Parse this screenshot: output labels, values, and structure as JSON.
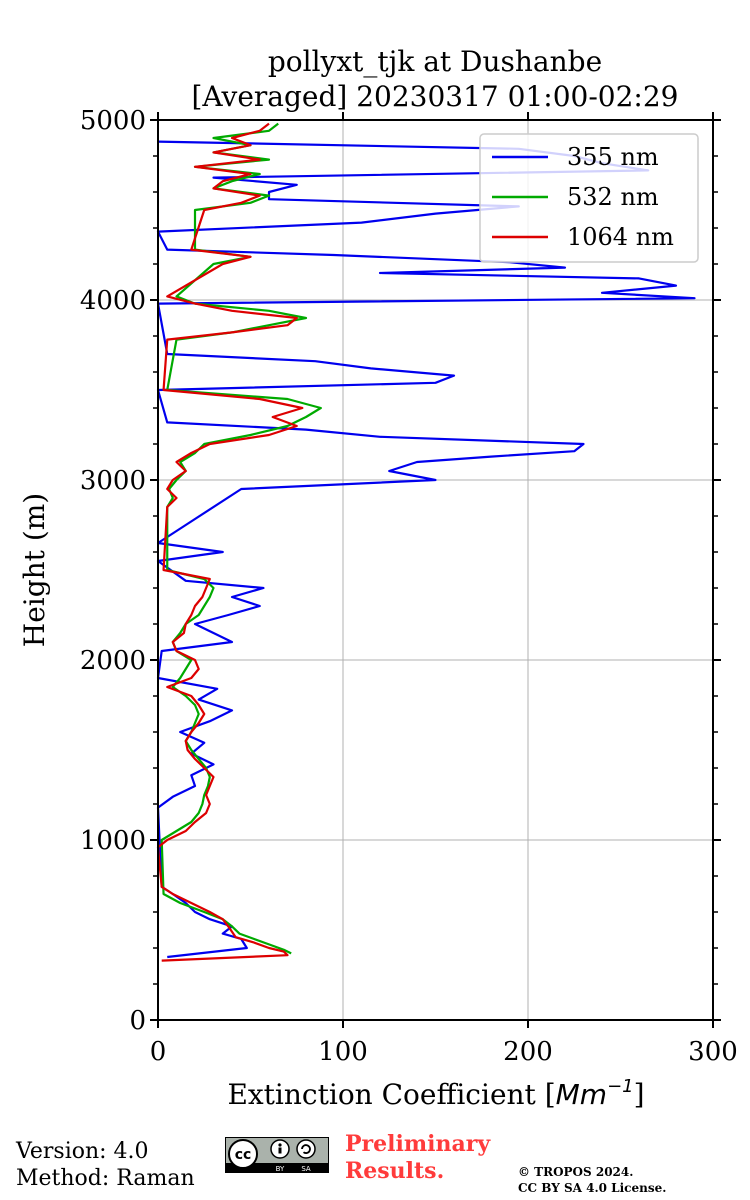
{
  "chart_data": {
    "type": "line",
    "title_line1": "pollyxt_tjk at Dushanbe",
    "title_line2": "[Averaged] 20230317 01:00-02:29",
    "xlabel": "Extinction Coefficient [Mm⁻¹]",
    "xlabel_main": "Extinction Coefficient [",
    "xlabel_unit": "Mm",
    "xlabel_exp": "−1",
    "xlabel_close": "]",
    "ylabel": "Height (m)",
    "xlim": [
      0,
      300
    ],
    "ylim": [
      0,
      5000
    ],
    "xticks": [
      "0",
      "100",
      "200",
      "300"
    ],
    "yticks": [
      "0",
      "1000",
      "2000",
      "3000",
      "4000",
      "5000"
    ],
    "grid": true,
    "legend_position": "top-right",
    "series": [
      {
        "name": "355 nm",
        "color": "#0000ee",
        "heights": [
          350,
          400,
          450,
          480,
          520,
          560,
          600,
          650,
          700,
          740,
          1180,
          1240,
          1300,
          1360,
          1420,
          1480,
          1540,
          1600,
          1660,
          1720,
          1780,
          1840,
          1900,
          2050,
          2100,
          2150,
          2200,
          2250,
          2300,
          2350,
          2400,
          2440,
          2550,
          2600,
          2650,
          2750,
          2950,
          3000,
          3050,
          3100,
          3130,
          3160,
          3200,
          3240,
          3280,
          3320,
          3500,
          3540,
          3580,
          3620,
          3660,
          3700,
          3980,
          4010,
          4040,
          4080,
          4120,
          4150,
          4180,
          4210,
          4250,
          4280,
          4380,
          4430,
          4480,
          4520,
          4560,
          4600,
          4640,
          4680,
          4720,
          4760,
          4800,
          4840,
          4880
        ],
        "values": [
          5,
          48,
          45,
          35,
          40,
          28,
          20,
          15,
          8,
          2,
          0,
          8,
          20,
          18,
          30,
          18,
          25,
          12,
          28,
          40,
          22,
          32,
          0,
          2,
          40,
          30,
          20,
          38,
          55,
          40,
          57,
          15,
          0,
          35,
          0,
          15,
          45,
          150,
          125,
          140,
          180,
          225,
          230,
          120,
          80,
          5,
          0,
          150,
          160,
          115,
          85,
          5,
          0,
          290,
          240,
          280,
          260,
          120,
          220,
          190,
          95,
          5,
          0,
          110,
          150,
          195,
          60,
          60,
          75,
          30,
          265,
          240,
          225,
          195,
          0
        ]
      },
      {
        "name": "532 nm",
        "color": "#00aa00",
        "heights": [
          370,
          390,
          420,
          450,
          480,
          520,
          560,
          600,
          650,
          700,
          1000,
          1050,
          1100,
          1150,
          1200,
          1250,
          1300,
          1350,
          1400,
          1450,
          1500,
          1550,
          1600,
          1650,
          1700,
          1750,
          1800,
          1850,
          1900,
          1950,
          2000,
          2050,
          2100,
          2150,
          2200,
          2250,
          2300,
          2350,
          2400,
          2450,
          2500,
          2850,
          2900,
          2950,
          3000,
          3050,
          3100,
          3150,
          3200,
          3250,
          3300,
          3350,
          3400,
          3450,
          3500,
          3780,
          3820,
          3860,
          3900,
          3940,
          3980,
          4020,
          4200,
          4240,
          4280,
          4500,
          4540,
          4580,
          4620,
          4660,
          4700,
          4740,
          4780,
          4820,
          4860,
          4900,
          4940,
          4980
        ],
        "values": [
          72,
          68,
          60,
          52,
          44,
          40,
          35,
          25,
          12,
          3,
          2,
          10,
          18,
          22,
          24,
          25,
          27,
          28,
          26,
          22,
          18,
          15,
          18,
          20,
          22,
          20,
          15,
          8,
          12,
          15,
          18,
          10,
          8,
          12,
          15,
          22,
          25,
          28,
          30,
          25,
          5,
          5,
          8,
          6,
          10,
          15,
          12,
          20,
          25,
          50,
          70,
          80,
          88,
          70,
          5,
          10,
          40,
          60,
          80,
          60,
          20,
          10,
          30,
          50,
          20,
          20,
          50,
          60,
          30,
          40,
          55,
          20,
          60,
          30,
          50,
          30,
          60,
          65
        ]
      },
      {
        "name": "1064 nm",
        "color": "#dd0000",
        "heights": [
          330,
          360,
          380,
          400,
          430,
          460,
          490,
          520,
          560,
          600,
          650,
          700,
          740,
          960,
          1000,
          1050,
          1100,
          1150,
          1200,
          1250,
          1300,
          1350,
          1400,
          1450,
          1500,
          1550,
          1600,
          1650,
          1700,
          1750,
          1800,
          1850,
          1900,
          1950,
          2000,
          2050,
          2100,
          2150,
          2200,
          2250,
          2300,
          2350,
          2400,
          2450,
          2500,
          2850,
          2900,
          2950,
          3000,
          3050,
          3100,
          3150,
          3200,
          3250,
          3300,
          3350,
          3400,
          3450,
          3500,
          3780,
          3820,
          3860,
          3900,
          3940,
          3980,
          4020,
          4200,
          4240,
          4280,
          4500,
          4540,
          4580,
          4620,
          4660,
          4700,
          4740,
          4780,
          4820,
          4860,
          4900,
          4940,
          4980
        ],
        "values": [
          2,
          70,
          68,
          60,
          52,
          42,
          40,
          38,
          35,
          28,
          18,
          8,
          2,
          0,
          5,
          15,
          20,
          26,
          28,
          26,
          28,
          30,
          25,
          20,
          16,
          15,
          18,
          22,
          25,
          22,
          18,
          5,
          18,
          22,
          20,
          10,
          8,
          14,
          15,
          18,
          20,
          24,
          26,
          28,
          3,
          5,
          10,
          5,
          8,
          15,
          10,
          18,
          28,
          60,
          75,
          62,
          78,
          55,
          3,
          5,
          40,
          70,
          75,
          40,
          20,
          5,
          35,
          50,
          18,
          25,
          45,
          55,
          30,
          35,
          50,
          20,
          55,
          30,
          50,
          40,
          55,
          60
        ]
      }
    ]
  },
  "footer": {
    "version": "Version: 4.0",
    "method": "Method: Raman",
    "cc_text": "cc",
    "cc_by": "BY",
    "cc_sa": "SA",
    "preliminary_line1": "Preliminary",
    "preliminary_line2": "Results.",
    "copyright_line1": "© TROPOS 2024.",
    "copyright_line2": "CC BY SA 4.0 License."
  }
}
